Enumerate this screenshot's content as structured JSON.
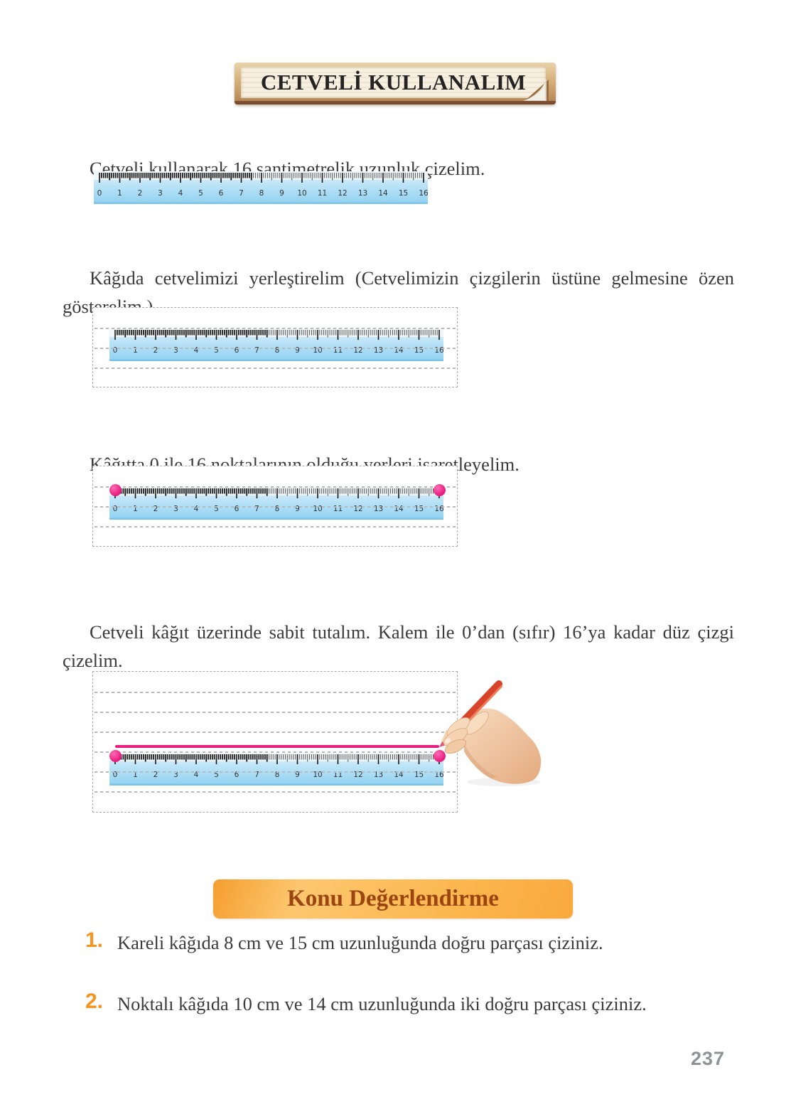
{
  "title_banner": {
    "text": "CETVELİ KULLANALIM"
  },
  "steps": {
    "step1": {
      "text": "Cetveli kullanarak 16 santimetrelik uzunluk çizelim."
    },
    "step2": {
      "text": "Kâğıda cetvelimizi yerleştirelim (Cetvelimizin çizgilerin üstüne gelmesine özen gösterelim.)."
    },
    "step3": {
      "text": "Kâğıtta 0 ile 16 noktalarının olduğu yerleri işaretleyelim."
    },
    "step4": {
      "text": "Cetveli kâğıt üzerinde sabit tutalım. Kalem ile 0’dan (sıfır) 16’ya kadar düz çizgi çizelim."
    }
  },
  "ruler": {
    "numbers": [
      "0",
      "1",
      "2",
      "3",
      "4",
      "5",
      "6",
      "7",
      "8",
      "9",
      "10",
      "11",
      "12",
      "13",
      "14",
      "15",
      "16"
    ]
  },
  "assessment": {
    "header": "Konu Değerlendirme",
    "items": [
      {
        "number": "1.",
        "text": "Kareli kâğıda 8 cm ve 15 cm uzunluğunda doğru parçası çiziniz."
      },
      {
        "number": "2.",
        "text": "Noktalı kâğıda 10 cm ve 14 cm uzunluğunda iki doğru parçası çiziniz."
      }
    ]
  },
  "page_number": "237",
  "colors": {
    "accent_pink": "#e81e82",
    "ruler_blue": "#b5e2f7",
    "ruler_blue_dark": "#7ec5e9",
    "wood_tan": "#cfa76f",
    "panel_cream": "#f6efdf",
    "konu_orange": "#fbb54e",
    "konu_text": "#9c4511",
    "item_number_orange": "#f7941d",
    "body_text": "#3b3b3b",
    "page_number_gray": "#8f9296",
    "pencil_red": "#d8442a"
  }
}
